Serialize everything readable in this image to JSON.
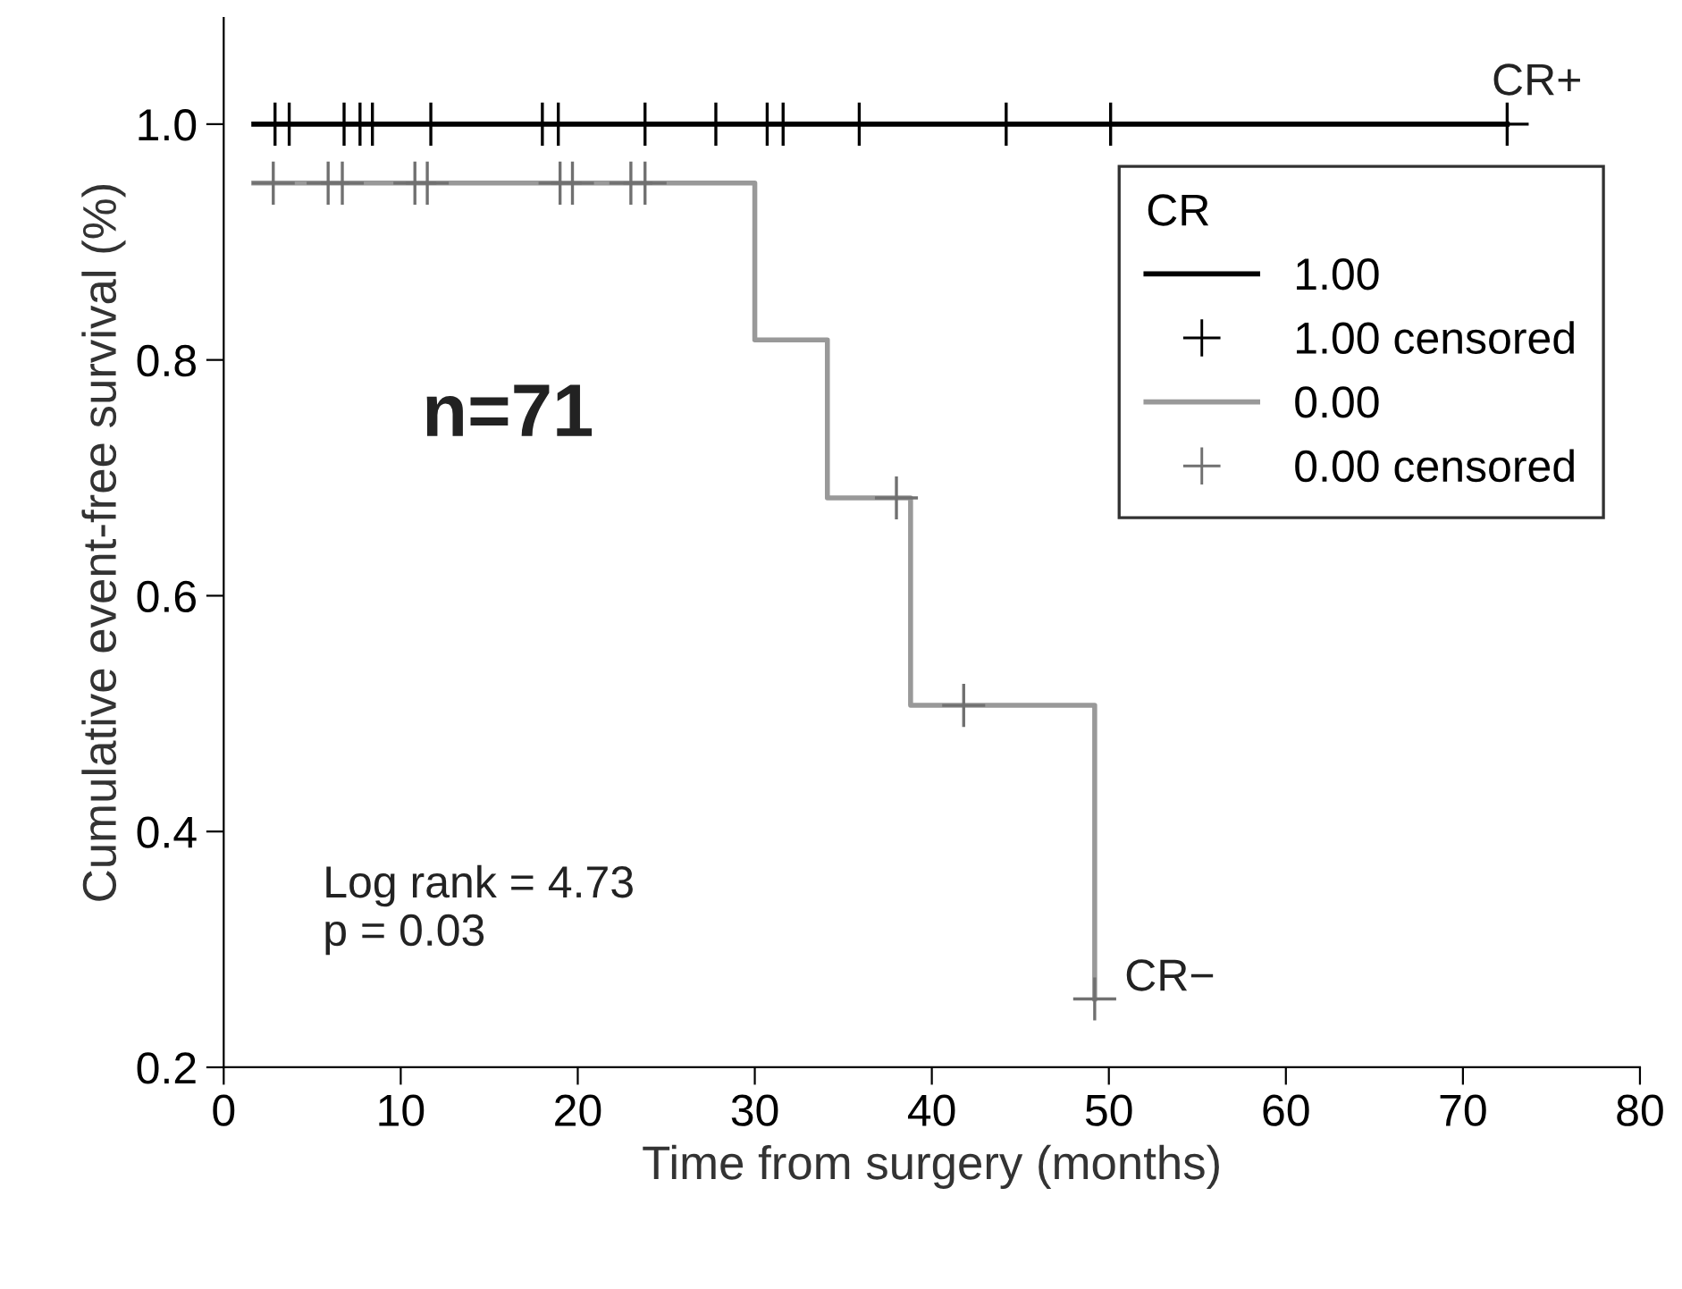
{
  "chart_data": {
    "type": "step",
    "xlabel": "Time from surgery (months)",
    "ylabel": "Cumulative event-free survival (%)",
    "legend_title": "CR",
    "legend": "top right",
    "grid": false,
    "xlim": [
      0,
      80
    ],
    "xticks": [
      0,
      10,
      20,
      30,
      40,
      50,
      60,
      70,
      80
    ],
    "ylim": [
      0.2,
      1.09
    ],
    "yticks": [
      0.2,
      0.4,
      0.6,
      0.8,
      {
        "value": 1.0,
        "label": "1.0"
      }
    ],
    "series": [
      {
        "name": "1.00",
        "color": "#000000",
        "x": [
          1.7,
          72.5
        ],
        "values": [
          1.0,
          1.0
        ],
        "marker": "none"
      },
      {
        "name": "1.00 censored",
        "type": "scatter",
        "color": "#000000",
        "marker": "cross",
        "x": [
          2.9,
          3.7,
          6.8,
          7.7,
          8.4,
          11.7,
          18.0,
          18.9,
          23.8,
          27.8,
          30.7,
          31.6,
          35.9,
          44.2,
          50.1,
          72.5
        ],
        "values": [
          1.0,
          1.0,
          1.0,
          1.0,
          1.0,
          1.0,
          1.0,
          1.0,
          1.0,
          1.0,
          1.0,
          1.0,
          1.0,
          1.0,
          1.0,
          1.0
        ]
      },
      {
        "name": "0.00",
        "color": "#999999",
        "x": [
          1.7,
          30.0,
          34.1,
          38.8,
          49.2
        ],
        "values": [
          0.95,
          0.817,
          0.683,
          0.507,
          0.258
        ],
        "marker": "none"
      },
      {
        "name": "0.00 censored",
        "type": "scatter",
        "color": "#707070",
        "marker": "cross",
        "x": [
          2.8,
          5.9,
          6.7,
          10.8,
          11.5,
          19.0,
          19.7,
          23.0,
          23.8,
          38.0,
          41.8,
          49.2
        ],
        "values": [
          0.95,
          0.95,
          0.95,
          0.95,
          0.95,
          0.95,
          0.95,
          0.95,
          0.95,
          0.683,
          0.507,
          0.258
        ]
      }
    ],
    "annotations": [
      {
        "text": "CR+",
        "x": 72.5,
        "y": 1.0
      },
      {
        "text": "CR−",
        "x": 49.2,
        "y": 0.258
      },
      "n=71",
      "Log rank = 4.73\np = 0.03"
    ]
  }
}
